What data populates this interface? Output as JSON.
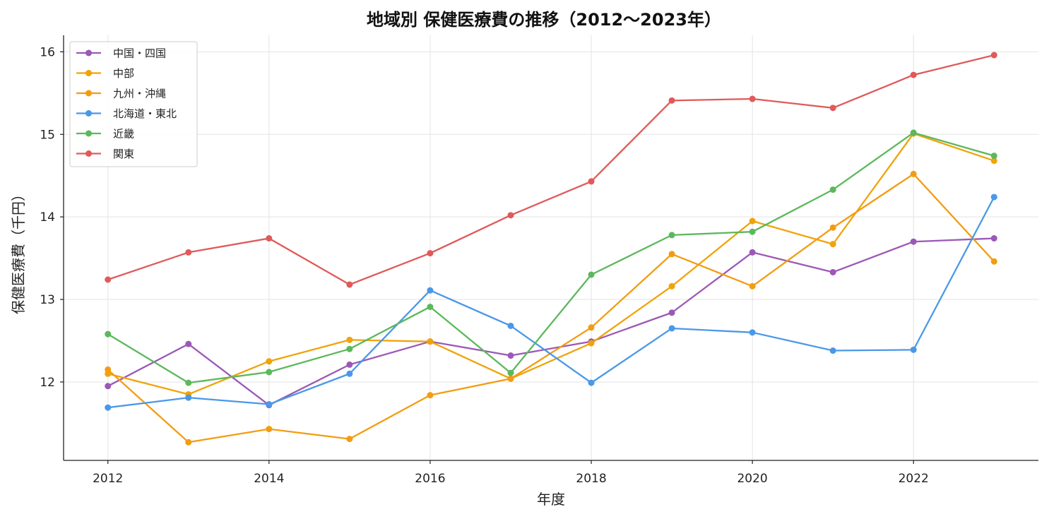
{
  "chart_data": {
    "type": "line",
    "title": "地域別 保健医療費の推移（2012〜2023年）",
    "xlabel": "年度",
    "ylabel": "保健医療費（千円）",
    "x": [
      2012,
      2013,
      2014,
      2015,
      2016,
      2017,
      2018,
      2019,
      2020,
      2021,
      2022,
      2023
    ],
    "xlim": [
      2011.45,
      2023.55
    ],
    "ylim": [
      11.05,
      16.2
    ],
    "xticks": [
      2012,
      2014,
      2016,
      2018,
      2020,
      2022
    ],
    "yticks": [
      12,
      13,
      14,
      15,
      16
    ],
    "grid": true,
    "legend_position": "top-left",
    "series": [
      {
        "name": "中国・四国",
        "color": "#9b59b6",
        "values": [
          11.95,
          12.46,
          11.72,
          12.21,
          12.49,
          12.32,
          12.49,
          12.84,
          13.57,
          13.33,
          13.7,
          13.74
        ]
      },
      {
        "name": "中部",
        "color": "#f0a30a",
        "values": [
          12.1,
          11.85,
          12.25,
          12.51,
          12.49,
          12.04,
          12.47,
          13.16,
          13.95,
          13.67,
          15.01,
          14.68
        ]
      },
      {
        "name": "九州・沖縄",
        "color": "#f39c12",
        "values": [
          12.15,
          11.27,
          11.43,
          11.31,
          11.84,
          12.04,
          12.66,
          13.55,
          13.16,
          13.87,
          14.52,
          13.46
        ]
      },
      {
        "name": "北海道・東北",
        "color": "#4a98e8",
        "values": [
          11.69,
          11.81,
          11.73,
          12.1,
          13.11,
          12.68,
          11.99,
          12.65,
          12.6,
          12.38,
          12.39,
          14.24
        ]
      },
      {
        "name": "近畿",
        "color": "#5cb85c",
        "values": [
          12.58,
          11.99,
          12.12,
          12.4,
          12.91,
          12.11,
          13.3,
          13.78,
          13.82,
          14.33,
          15.02,
          14.74
        ]
      },
      {
        "name": "関東",
        "color": "#e05a5a",
        "values": [
          13.24,
          13.57,
          13.74,
          13.18,
          13.56,
          14.02,
          14.43,
          15.41,
          15.43,
          15.32,
          15.72,
          15.96
        ]
      }
    ]
  }
}
